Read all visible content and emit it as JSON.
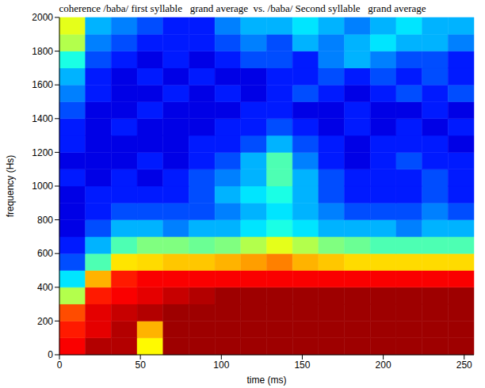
{
  "chart_data": {
    "type": "heatmap",
    "title": "coherence /baba/ first syllable   grand average  vs. /baba/ Second syllable   grand average",
    "x_label": "time (ms)",
    "y_label": "frequency (Hs)",
    "xlim": [
      0,
      256
    ],
    "ylim": [
      0,
      2000
    ],
    "xticks": [
      0,
      50,
      100,
      150,
      200,
      250
    ],
    "yticks": [
      0,
      200,
      400,
      600,
      800,
      1000,
      1200,
      1400,
      1600,
      1800,
      2000
    ],
    "x_edges": [
      0,
      16,
      32,
      48,
      64,
      80,
      96,
      112,
      128,
      144,
      160,
      176,
      192,
      208,
      224,
      240,
      256
    ],
    "y_edges": [
      0,
      100,
      200,
      300,
      400,
      500,
      600,
      700,
      800,
      900,
      1000,
      1100,
      1200,
      1300,
      1400,
      1500,
      1600,
      1700,
      1800,
      1900,
      2000
    ],
    "zlim": [
      0,
      1
    ],
    "cells": [
      [
        0.88,
        0.95,
        0.95,
        0.63,
        0.97,
        0.97,
        0.97,
        0.97,
        0.97,
        0.97,
        0.97,
        0.97,
        0.97,
        0.97,
        0.97,
        0.97
      ],
      [
        0.85,
        0.9,
        0.95,
        0.7,
        0.97,
        0.97,
        0.97,
        0.97,
        0.97,
        0.97,
        0.97,
        0.97,
        0.97,
        0.97,
        0.97,
        0.97
      ],
      [
        0.8,
        0.9,
        0.93,
        0.95,
        0.97,
        0.97,
        0.97,
        0.97,
        0.97,
        0.97,
        0.97,
        0.97,
        0.97,
        0.97,
        0.97,
        0.97
      ],
      [
        0.55,
        0.85,
        0.88,
        0.9,
        0.93,
        0.95,
        0.97,
        0.97,
        0.97,
        0.97,
        0.97,
        0.97,
        0.97,
        0.97,
        0.97,
        0.97
      ],
      [
        0.35,
        0.7,
        0.85,
        0.88,
        0.88,
        0.88,
        0.88,
        0.88,
        0.88,
        0.88,
        0.88,
        0.88,
        0.88,
        0.88,
        0.88,
        0.88
      ],
      [
        0.2,
        0.45,
        0.65,
        0.66,
        0.68,
        0.68,
        0.7,
        0.72,
        0.75,
        0.7,
        0.68,
        0.66,
        0.66,
        0.66,
        0.66,
        0.66
      ],
      [
        0.15,
        0.3,
        0.45,
        0.5,
        0.5,
        0.48,
        0.5,
        0.55,
        0.6,
        0.55,
        0.5,
        0.48,
        0.45,
        0.45,
        0.45,
        0.45
      ],
      [
        0.1,
        0.2,
        0.3,
        0.3,
        0.25,
        0.3,
        0.3,
        0.35,
        0.4,
        0.35,
        0.3,
        0.3,
        0.3,
        0.25,
        0.3,
        0.3
      ],
      [
        0.1,
        0.15,
        0.2,
        0.2,
        0.2,
        0.2,
        0.25,
        0.3,
        0.35,
        0.3,
        0.25,
        0.2,
        0.2,
        0.2,
        0.25,
        0.2
      ],
      [
        0.1,
        0.15,
        0.15,
        0.15,
        0.15,
        0.2,
        0.3,
        0.35,
        0.4,
        0.3,
        0.2,
        0.15,
        0.15,
        0.15,
        0.2,
        0.15
      ],
      [
        0.15,
        0.1,
        0.15,
        0.1,
        0.15,
        0.2,
        0.25,
        0.3,
        0.45,
        0.3,
        0.2,
        0.15,
        0.15,
        0.15,
        0.2,
        0.15
      ],
      [
        0.1,
        0.1,
        0.1,
        0.15,
        0.1,
        0.15,
        0.2,
        0.3,
        0.45,
        0.25,
        0.15,
        0.1,
        0.15,
        0.2,
        0.15,
        0.15
      ],
      [
        0.15,
        0.1,
        0.1,
        0.1,
        0.1,
        0.15,
        0.15,
        0.2,
        0.3,
        0.2,
        0.15,
        0.1,
        0.15,
        0.15,
        0.15,
        0.1
      ],
      [
        0.15,
        0.1,
        0.15,
        0.1,
        0.1,
        0.1,
        0.15,
        0.15,
        0.2,
        0.15,
        0.1,
        0.15,
        0.1,
        0.15,
        0.1,
        0.15
      ],
      [
        0.2,
        0.1,
        0.1,
        0.15,
        0.1,
        0.1,
        0.1,
        0.15,
        0.15,
        0.1,
        0.1,
        0.15,
        0.1,
        0.1,
        0.15,
        0.1
      ],
      [
        0.25,
        0.15,
        0.1,
        0.1,
        0.15,
        0.1,
        0.15,
        0.1,
        0.15,
        0.2,
        0.15,
        0.1,
        0.15,
        0.2,
        0.15,
        0.2
      ],
      [
        0.3,
        0.15,
        0.1,
        0.15,
        0.1,
        0.15,
        0.1,
        0.1,
        0.15,
        0.15,
        0.2,
        0.15,
        0.2,
        0.15,
        0.2,
        0.15
      ],
      [
        0.4,
        0.2,
        0.15,
        0.1,
        0.15,
        0.1,
        0.15,
        0.2,
        0.2,
        0.15,
        0.25,
        0.3,
        0.25,
        0.2,
        0.2,
        0.15
      ],
      [
        0.55,
        0.25,
        0.2,
        0.15,
        0.15,
        0.15,
        0.2,
        0.25,
        0.2,
        0.3,
        0.25,
        0.3,
        0.35,
        0.3,
        0.3,
        0.25
      ],
      [
        0.6,
        0.3,
        0.25,
        0.2,
        0.15,
        0.15,
        0.25,
        0.3,
        0.3,
        0.35,
        0.3,
        0.25,
        0.3,
        0.35,
        0.3,
        0.3
      ]
    ]
  }
}
